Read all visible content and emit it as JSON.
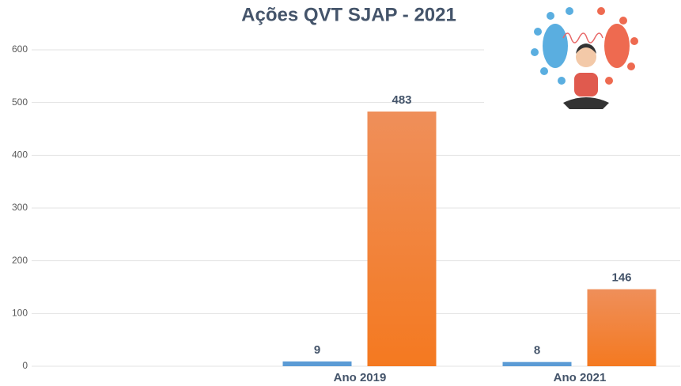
{
  "chart_data": {
    "type": "bar",
    "title": "Ações QVT SJAP - 2021",
    "categories": [
      null,
      "Ano 2019",
      "Ano 2021"
    ],
    "series": [
      {
        "color": "#5b9bd5",
        "values": [
          null,
          9,
          8
        ]
      },
      {
        "color": "#f47920",
        "values": [
          null,
          483,
          146
        ]
      }
    ],
    "ylim": [
      0,
      600
    ],
    "yticks": [
      0,
      100,
      200,
      300,
      400,
      500,
      600
    ],
    "grid": true
  }
}
